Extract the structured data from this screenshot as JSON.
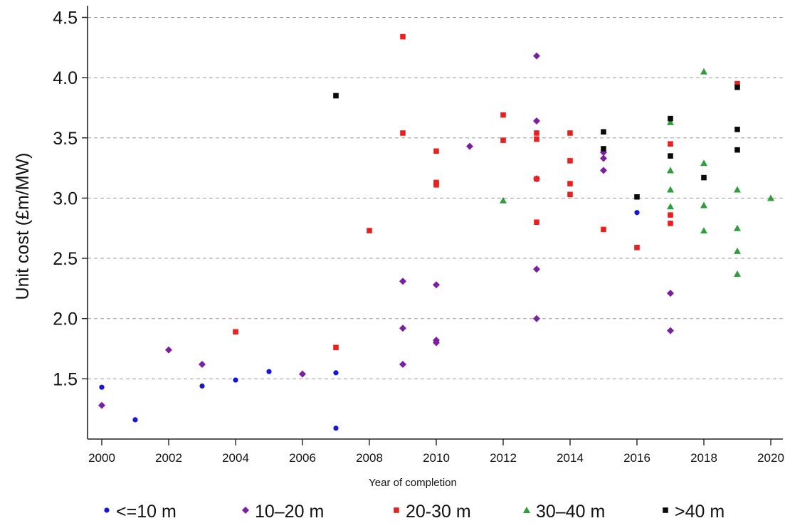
{
  "chart_data": {
    "type": "scatter",
    "title": "",
    "xlabel": "Year of completion",
    "ylabel": "Unit cost (£m/MW)",
    "xlim": [
      2000,
      2020
    ],
    "ylim": [
      1.0,
      4.5
    ],
    "x_ticks": [
      2000,
      2002,
      2004,
      2006,
      2008,
      2010,
      2012,
      2014,
      2016,
      2018,
      2020
    ],
    "x_tick_labels": [
      "2000",
      "2002",
      "2004",
      "2006",
      "2008",
      "2010",
      "2012",
      "2014",
      "2016",
      "2018",
      "2020"
    ],
    "y_ticks": [
      1.5,
      2.0,
      2.5,
      3.0,
      3.5,
      4.0,
      4.5
    ],
    "y_tick_labels": [
      "1.5",
      "2.0",
      "2.5",
      "3.0",
      "3.5",
      "4.0",
      "4.5"
    ],
    "grid": "horizontal dashed",
    "legend_position": "bottom",
    "series": [
      {
        "name": "<=10 m",
        "marker": "circle",
        "color": "#1515d6",
        "points": [
          [
            2000,
            1.43
          ],
          [
            2001,
            1.16
          ],
          [
            2003,
            1.44
          ],
          [
            2004,
            1.49
          ],
          [
            2005,
            1.56
          ],
          [
            2007,
            1.55
          ],
          [
            2007,
            1.09
          ],
          [
            2016,
            2.88
          ]
        ]
      },
      {
        "name": "10–20 m",
        "marker": "diamond",
        "color": "#7a1fa2",
        "points": [
          [
            2000,
            1.28
          ],
          [
            2002,
            1.74
          ],
          [
            2003,
            1.62
          ],
          [
            2006,
            1.54
          ],
          [
            2009,
            2.31
          ],
          [
            2009,
            1.92
          ],
          [
            2009,
            1.62
          ],
          [
            2010,
            2.28
          ],
          [
            2010,
            1.82
          ],
          [
            2010,
            1.8
          ],
          [
            2011,
            3.43
          ],
          [
            2013,
            4.18
          ],
          [
            2013,
            3.64
          ],
          [
            2013,
            3.16
          ],
          [
            2013,
            2.41
          ],
          [
            2013,
            2.0
          ],
          [
            2015,
            3.38
          ],
          [
            2015,
            3.33
          ],
          [
            2015,
            3.23
          ],
          [
            2017,
            2.21
          ],
          [
            2017,
            1.9
          ]
        ]
      },
      {
        "name": "20-30 m",
        "marker": "square",
        "color": "#e8201e",
        "points": [
          [
            2004,
            1.89
          ],
          [
            2007,
            1.76
          ],
          [
            2008,
            2.73
          ],
          [
            2009,
            4.34
          ],
          [
            2009,
            3.54
          ],
          [
            2010,
            3.39
          ],
          [
            2010,
            3.13
          ],
          [
            2010,
            3.11
          ],
          [
            2012,
            3.69
          ],
          [
            2012,
            3.48
          ],
          [
            2013,
            3.54
          ],
          [
            2013,
            3.49
          ],
          [
            2013,
            3.16
          ],
          [
            2013,
            2.8
          ],
          [
            2014,
            3.54
          ],
          [
            2014,
            3.31
          ],
          [
            2014,
            3.12
          ],
          [
            2014,
            3.03
          ],
          [
            2015,
            2.74
          ],
          [
            2016,
            2.59
          ],
          [
            2017,
            3.45
          ],
          [
            2017,
            2.86
          ],
          [
            2017,
            2.79
          ],
          [
            2019,
            3.95
          ]
        ]
      },
      {
        "name": "30–40 m",
        "marker": "triangle",
        "color": "#2e9e3a",
        "points": [
          [
            2012,
            2.98
          ],
          [
            2017,
            3.63
          ],
          [
            2017,
            3.23
          ],
          [
            2017,
            3.07
          ],
          [
            2017,
            2.93
          ],
          [
            2018,
            4.05
          ],
          [
            2018,
            3.29
          ],
          [
            2018,
            2.94
          ],
          [
            2018,
            2.73
          ],
          [
            2019,
            3.07
          ],
          [
            2019,
            2.75
          ],
          [
            2019,
            2.56
          ],
          [
            2019,
            2.37
          ],
          [
            2020,
            3.0
          ]
        ]
      },
      {
        "name": ">40 m",
        "marker": "square",
        "color": "#0a0a0a",
        "points": [
          [
            2007,
            3.85
          ],
          [
            2015,
            3.55
          ],
          [
            2015,
            3.41
          ],
          [
            2016,
            3.01
          ],
          [
            2017,
            3.66
          ],
          [
            2017,
            3.35
          ],
          [
            2018,
            3.17
          ],
          [
            2019,
            3.92
          ],
          [
            2019,
            3.57
          ],
          [
            2019,
            3.4
          ]
        ]
      }
    ]
  }
}
